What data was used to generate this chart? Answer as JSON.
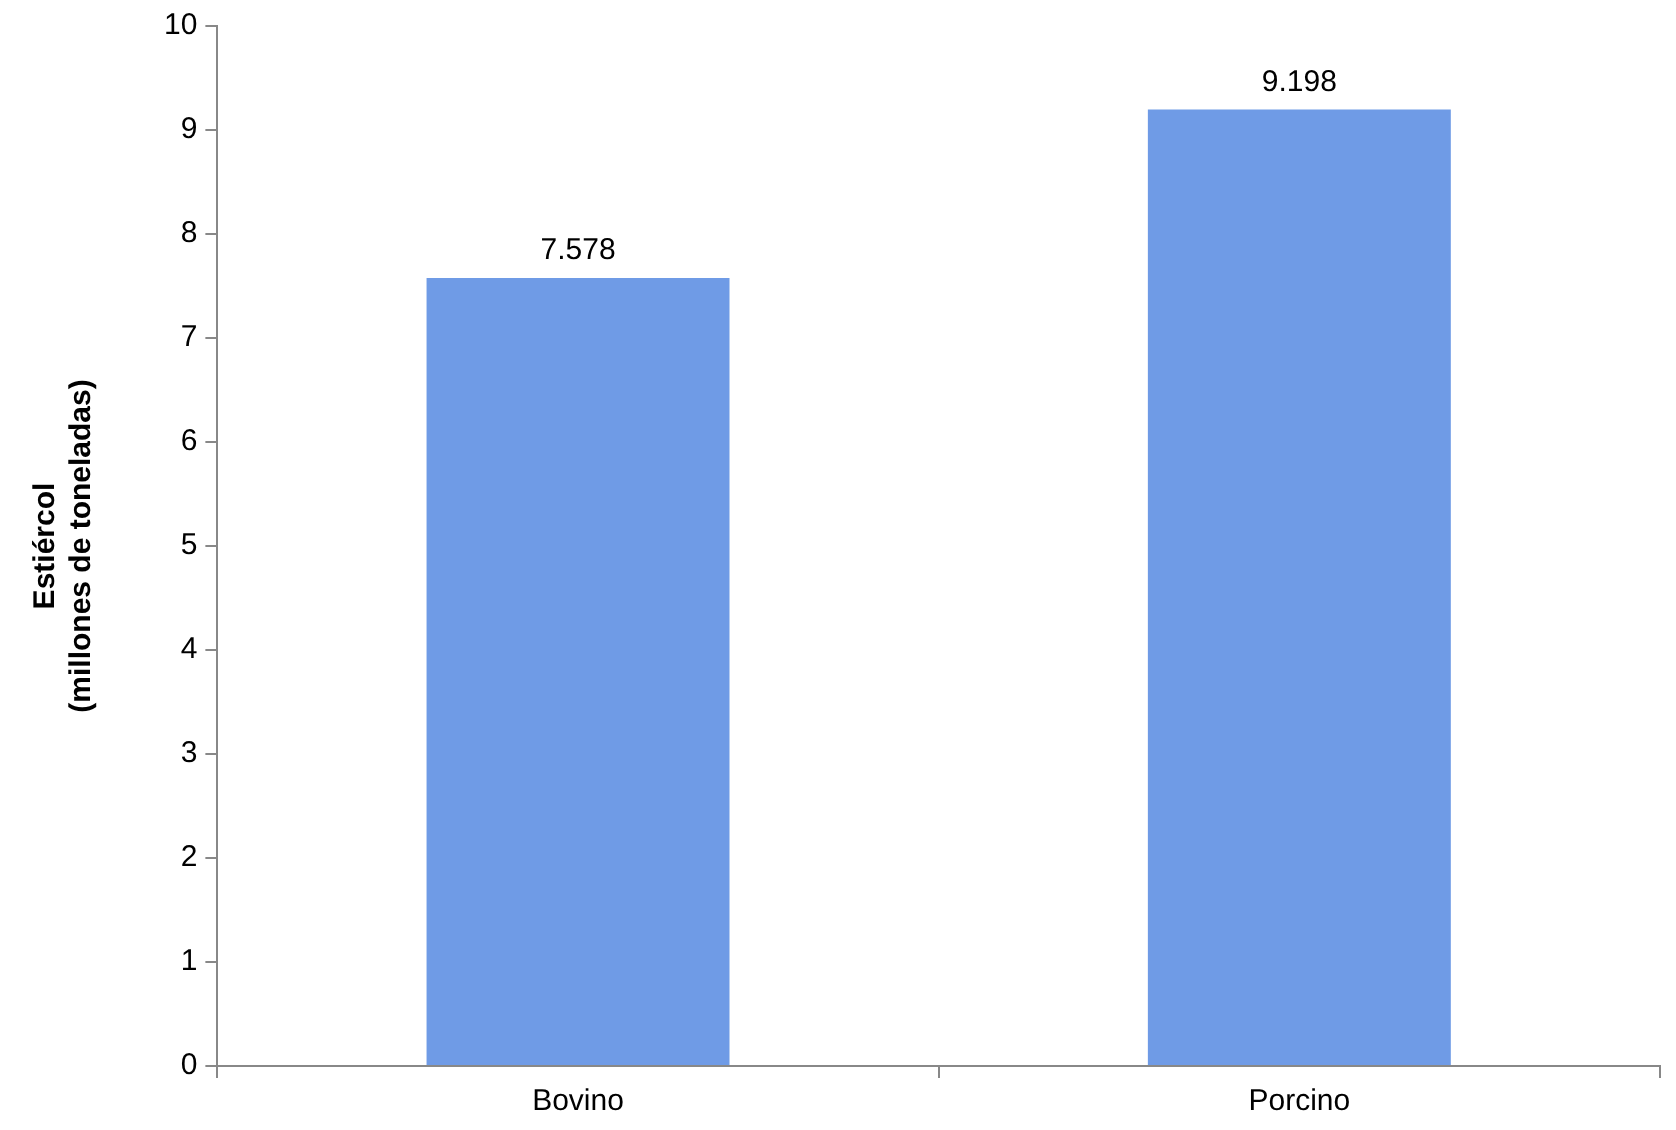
{
  "chart_data": {
    "type": "bar",
    "ylabel": "Estiércol\n(millones de toneladas)",
    "categories": [
      "Bovino",
      "Porcino"
    ],
    "values": [
      7.578,
      9.198
    ],
    "color": "#6f9be6",
    "ylim": [
      0,
      10
    ],
    "yticks": [
      0,
      1,
      2,
      3,
      4,
      5,
      6,
      7,
      8,
      9,
      10
    ],
    "grid": false,
    "legend": false,
    "data_labels": true
  }
}
